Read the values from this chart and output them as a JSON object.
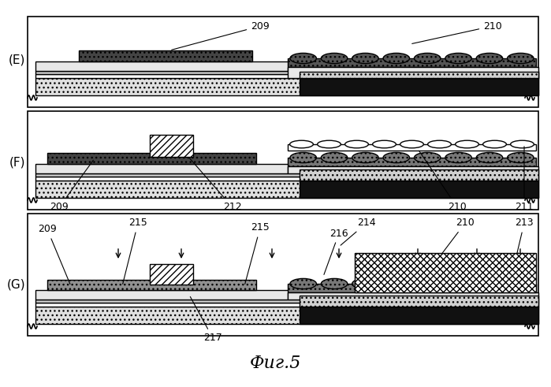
{
  "title": "Фиг.5",
  "panel_labels": [
    "(E)",
    "(F)",
    "(G)"
  ],
  "label_209": "209",
  "label_210": "210",
  "label_211": "211",
  "label_212": "212",
  "label_213": "213",
  "label_214": "214",
  "label_215": "215",
  "label_216": "216",
  "label_217": "217",
  "bg_color": "#ffffff",
  "line_color": "#000000",
  "dark_fill": "#1a1a1a",
  "dotted_fill": "#c8c8c8",
  "hatch_diagonal": "////",
  "hatch_cross": "xxxx",
  "hatch_dot": "....",
  "medium_gray": "#888888",
  "light_gray": "#d0d0d0"
}
